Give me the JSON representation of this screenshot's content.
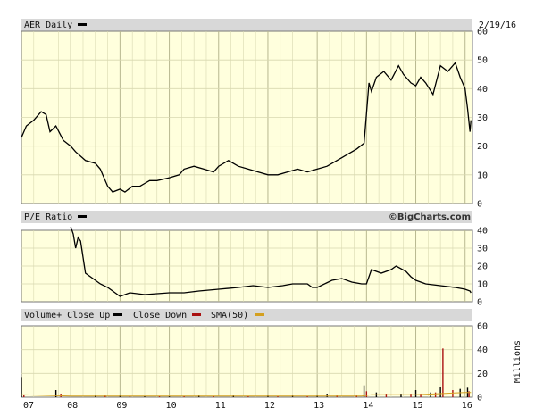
{
  "chart_data": [
    {
      "type": "line",
      "title": "AER Daily",
      "date": "2/19/16",
      "ylim": [
        0,
        60
      ],
      "yticks": [
        0,
        10,
        20,
        30,
        40,
        50,
        60
      ],
      "grid": true,
      "series": [
        {
          "x": [
            2007.0,
            2007.1,
            2007.25,
            2007.4,
            2007.5,
            2007.58,
            2007.7,
            2007.85,
            2008.0,
            2008.1,
            2008.3,
            2008.5,
            2008.6,
            2008.75,
            2008.85,
            2009.0,
            2009.1,
            2009.25,
            2009.4,
            2009.5,
            2009.6,
            2009.75,
            2010.0,
            2010.2,
            2010.3,
            2010.5,
            2010.7,
            2010.9,
            2011.0,
            2011.2,
            2011.4,
            2011.6,
            2011.8,
            2012.0,
            2012.2,
            2012.4,
            2012.6,
            2012.8,
            2013.0,
            2013.2,
            2013.4,
            2013.6,
            2013.8,
            2013.95,
            2014.05,
            2014.1,
            2014.2,
            2014.35,
            2014.5,
            2014.65,
            2014.75,
            2014.9,
            2015.0,
            2015.1,
            2015.2,
            2015.35,
            2015.5,
            2015.65,
            2015.8,
            2015.9,
            2016.0,
            2016.05,
            2016.1,
            2016.12
          ],
          "values": [
            23,
            27,
            29,
            32,
            31,
            25,
            27,
            22,
            20,
            18,
            15,
            14,
            12,
            6,
            4,
            5,
            4,
            6,
            6,
            7,
            8,
            8,
            9,
            10,
            12,
            13,
            12,
            11,
            13,
            15,
            13,
            12,
            11,
            10,
            10,
            11,
            12,
            11,
            12,
            13,
            15,
            17,
            19,
            21,
            42,
            39,
            44,
            46,
            43,
            48,
            45,
            42,
            41,
            44,
            42,
            38,
            48,
            46,
            49,
            44,
            40,
            33,
            25,
            29
          ]
        }
      ]
    },
    {
      "type": "line",
      "title": "P/E Ratio",
      "watermark": "©BigCharts.com",
      "ylim": [
        0,
        40
      ],
      "yticks": [
        0,
        10,
        20,
        30,
        40
      ],
      "grid": true,
      "series": [
        {
          "x": [
            2008.0,
            2008.05,
            2008.1,
            2008.15,
            2008.2,
            2008.3,
            2008.5,
            2008.6,
            2008.75,
            2008.9,
            2009.0,
            2009.2,
            2009.5,
            2010.0,
            2010.3,
            2010.6,
            2011.0,
            2011.4,
            2011.7,
            2012.0,
            2012.3,
            2012.5,
            2012.8,
            2012.9,
            2013.0,
            2013.3,
            2013.5,
            2013.7,
            2013.9,
            2014.0,
            2014.1,
            2014.3,
            2014.5,
            2014.6,
            2014.8,
            2014.9,
            2015.0,
            2015.2,
            2015.5,
            2015.8,
            2016.0,
            2016.1,
            2016.12
          ],
          "values": [
            42,
            38,
            30,
            36,
            34,
            16,
            12,
            10,
            8,
            5,
            3,
            5,
            4,
            5,
            5,
            6,
            7,
            8,
            9,
            8,
            9,
            10,
            10,
            8,
            8,
            12,
            13,
            11,
            10,
            10,
            18,
            16,
            18,
            20,
            17,
            14,
            12,
            10,
            9,
            8,
            7,
            6,
            5
          ]
        }
      ]
    },
    {
      "type": "bar",
      "title": "Volume+ Close Up",
      "legend": [
        "Close Down",
        "SMA(50)"
      ],
      "unit_label": "Millions",
      "ylim": [
        0,
        60
      ],
      "yticks": [
        0,
        20,
        40,
        60
      ],
      "grid": true,
      "xtick_labels": [
        "07",
        "08",
        "09",
        "10",
        "11",
        "12",
        "13",
        "14",
        "15",
        "16"
      ],
      "series": [
        {
          "name": "Close Up",
          "x": [
            2007.0,
            2007.7,
            2008.5,
            2009.0,
            2009.5,
            2010.0,
            2010.6,
            2011.3,
            2012.0,
            2012.5,
            2013.0,
            2013.2,
            2013.95,
            2014.2,
            2014.7,
            2015.0,
            2015.3,
            2015.5,
            2015.9,
            2016.05
          ],
          "values": [
            17,
            6,
            2,
            2,
            1,
            1,
            2,
            2,
            2,
            2,
            2,
            3,
            10,
            4,
            3,
            6,
            4,
            9,
            7,
            8
          ]
        },
        {
          "name": "Close Down",
          "x": [
            2007.05,
            2007.8,
            2008.7,
            2009.2,
            2009.8,
            2010.3,
            2010.9,
            2011.6,
            2012.2,
            2012.8,
            2013.4,
            2013.8,
            2014.0,
            2014.4,
            2014.9,
            2015.1,
            2015.4,
            2015.55,
            2015.75,
            2016.08
          ],
          "values": [
            2,
            3,
            2,
            1,
            1,
            1,
            1,
            1,
            1,
            1,
            2,
            2,
            5,
            3,
            3,
            3,
            4,
            41,
            6,
            5
          ]
        },
        {
          "name": "SMA(50)",
          "x": [
            2007.0,
            2008.0,
            2009.0,
            2010.0,
            2011.0,
            2012.0,
            2013.0,
            2013.9,
            2014.1,
            2014.5,
            2015.0,
            2015.5,
            2016.0,
            2016.12
          ],
          "values": [
            2,
            1,
            1,
            1,
            1,
            1,
            1,
            1,
            2,
            2,
            2,
            3,
            4,
            4
          ]
        }
      ]
    }
  ],
  "colors": {
    "plot_bg": "#ffffdd",
    "header_bg": "#d8d8d8",
    "grid": "#d8d8b0",
    "price_line": "#000000",
    "close_down": "#aa1111",
    "sma": "#d4a020"
  }
}
